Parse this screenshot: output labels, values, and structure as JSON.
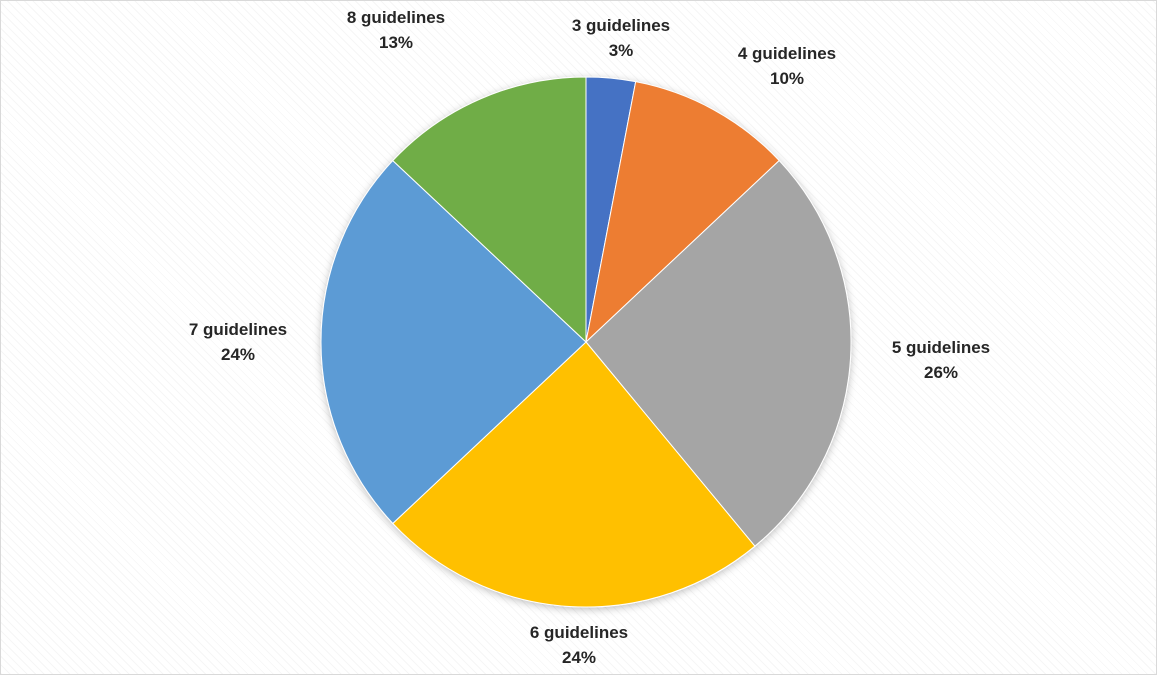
{
  "chart_data": {
    "type": "pie",
    "title": "",
    "slices": [
      {
        "label": "3 guidelines",
        "value": 3,
        "percent_label": "3%",
        "color": "#4472C4"
      },
      {
        "label": "4 guidelines",
        "value": 10,
        "percent_label": "10%",
        "color": "#ED7D31"
      },
      {
        "label": "5 guidelines",
        "value": 26,
        "percent_label": "26%",
        "color": "#A5A5A5"
      },
      {
        "label": "6 guidelines",
        "value": 24,
        "percent_label": "24%",
        "color": "#FFC000"
      },
      {
        "label": "7 guidelines",
        "value": 24,
        "percent_label": "24%",
        "color": "#5B9BD5"
      },
      {
        "label": "8 guidelines",
        "value": 13,
        "percent_label": "13%",
        "color": "#70AD47"
      }
    ],
    "start_angle": "12 o'clock",
    "direction": "clockwise",
    "legend": "none",
    "data_labels": "outside, category name and percentage"
  }
}
